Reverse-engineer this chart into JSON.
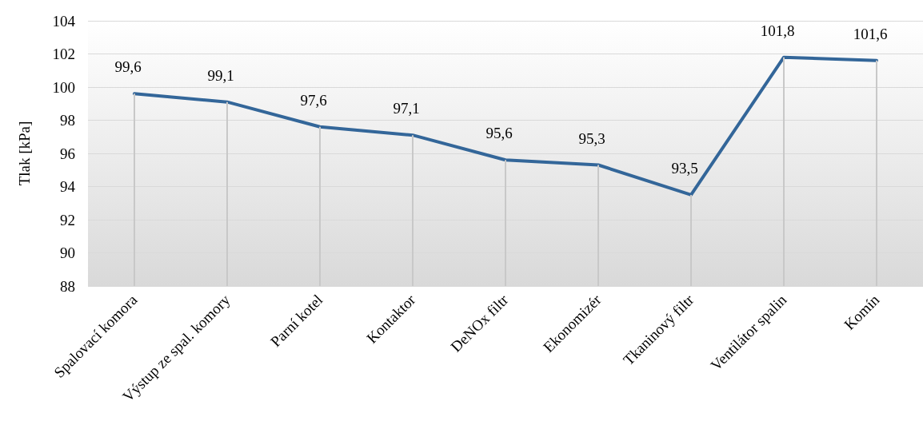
{
  "chart_data": {
    "type": "line",
    "ylabel": "Tlak [kPa]",
    "categories": [
      "Spalovací komora",
      "Výstup ze spal. komory",
      "Parní kotel",
      "Kontaktor",
      "DeNOx filtr",
      "Ekonomizér",
      "Tkaninový filtr",
      "Ventilátor spalin",
      "Komín"
    ],
    "series": [
      {
        "color": "#336699",
        "values": [
          99.6,
          99.1,
          97.6,
          97.1,
          95.6,
          95.3,
          93.5,
          101.8,
          101.6
        ],
        "value_labels": [
          "99,6",
          "99,1",
          "97,6",
          "97,1",
          "95,6",
          "95,3",
          "93,5",
          "101,8",
          "101,6"
        ]
      }
    ],
    "ylim": [
      88,
      104
    ],
    "yticks": [
      88,
      90,
      92,
      94,
      96,
      98,
      100,
      102,
      104
    ],
    "grid": true,
    "marker": "none",
    "line_style": "solid"
  }
}
